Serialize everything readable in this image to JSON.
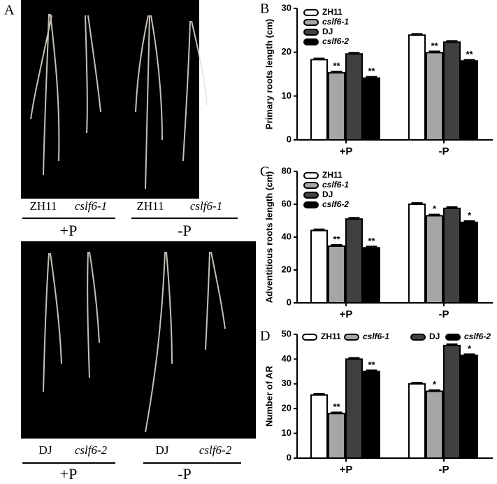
{
  "photo_panel": {
    "label": "A",
    "top": {
      "samples": [
        "ZH11",
        "cslf6-1",
        "ZH11",
        "cslf6-1"
      ],
      "conditions": [
        "+P",
        "-P"
      ]
    },
    "bottom": {
      "samples": [
        "DJ",
        "cslf6-2",
        "DJ",
        "cslf6-2"
      ],
      "conditions": [
        "+P",
        "-P"
      ]
    }
  },
  "chart_data": [
    {
      "type": "bar",
      "panel_label": "B",
      "y_label": "Primary roots length (cm)",
      "categories": [
        "+P",
        "-P"
      ],
      "series": [
        {
          "name": "ZH11",
          "color": "#ffffff",
          "italic": false,
          "values": [
            18.3,
            23.9
          ],
          "errors": [
            0.3,
            0.3
          ]
        },
        {
          "name": "cslf6-1",
          "color": "#a6a6a6",
          "italic": true,
          "values": [
            15.3,
            19.9
          ],
          "errors": [
            0.3,
            0.3
          ],
          "significance": [
            "**",
            "**"
          ]
        },
        {
          "name": "DJ",
          "color": "#404040",
          "italic": false,
          "values": [
            19.6,
            22.3
          ],
          "errors": [
            0.3,
            0.3
          ]
        },
        {
          "name": "cslf6-2",
          "color": "#000000",
          "italic": true,
          "values": [
            14.1,
            18.0
          ],
          "errors": [
            0.3,
            0.3
          ],
          "significance": [
            "**",
            "**"
          ]
        }
      ],
      "ylim": [
        0,
        30
      ],
      "yticks": [
        0,
        10,
        20,
        30
      ],
      "legend": "top-left"
    },
    {
      "type": "bar",
      "panel_label": "C",
      "y_label": "Adventitious roots length (cm)",
      "categories": [
        "+P",
        "-P"
      ],
      "series": [
        {
          "name": "ZH11",
          "color": "#ffffff",
          "italic": false,
          "values": [
            44,
            60
          ],
          "errors": [
            0.8,
            0.8
          ]
        },
        {
          "name": "cslf6-1",
          "color": "#a6a6a6",
          "italic": true,
          "values": [
            34.5,
            53
          ],
          "errors": [
            0.8,
            0.8
          ],
          "significance": [
            "**",
            "*"
          ]
        },
        {
          "name": "DJ",
          "color": "#404040",
          "italic": false,
          "values": [
            51,
            57.5
          ],
          "errors": [
            0.8,
            0.8
          ]
        },
        {
          "name": "cslf6-2",
          "color": "#000000",
          "italic": true,
          "values": [
            33.5,
            49
          ],
          "errors": [
            0.8,
            0.8
          ],
          "significance": [
            "**",
            "*"
          ]
        }
      ],
      "ylim": [
        0,
        80
      ],
      "yticks": [
        0,
        20,
        40,
        60,
        80
      ],
      "legend": "top-left"
    },
    {
      "type": "bar",
      "panel_label": "D",
      "y_label": "Number of AR",
      "categories": [
        "+P",
        "-P"
      ],
      "series": [
        {
          "name": "ZH11",
          "color": "#ffffff",
          "italic": false,
          "values": [
            25.5,
            30
          ],
          "errors": [
            0.5,
            0.5
          ]
        },
        {
          "name": "cslf6-1",
          "color": "#a6a6a6",
          "italic": true,
          "values": [
            18,
            27
          ],
          "errors": [
            0.5,
            0.5
          ],
          "significance": [
            "**",
            "*"
          ]
        },
        {
          "name": "DJ",
          "color": "#404040",
          "italic": false,
          "values": [
            40,
            45.5
          ],
          "errors": [
            0.5,
            0.5
          ]
        },
        {
          "name": "cslf6-2",
          "color": "#000000",
          "italic": true,
          "values": [
            35,
            41.5
          ],
          "errors": [
            0.5,
            0.5
          ],
          "significance": [
            "**",
            "*"
          ]
        }
      ],
      "ylim": [
        0,
        50
      ],
      "yticks": [
        0,
        10,
        20,
        30,
        40,
        50
      ],
      "legend": "top"
    }
  ]
}
